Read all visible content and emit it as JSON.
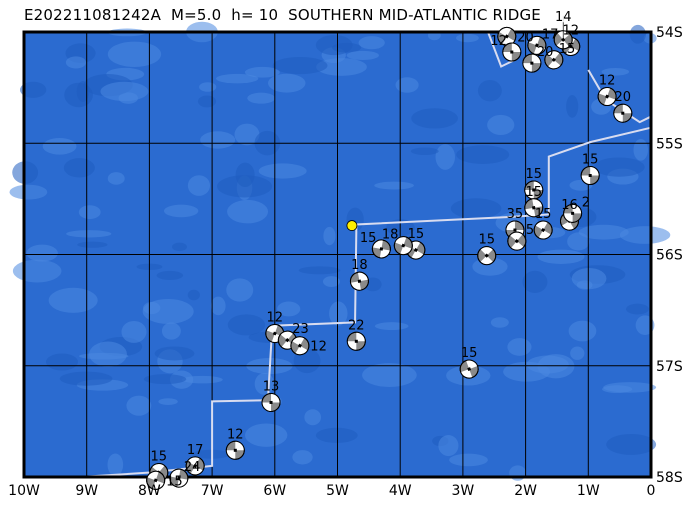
{
  "title": "E202211081242A  M=5.0  h= 10  SOUTHERN MID-ATLANTIC RIDGE",
  "colors": {
    "ocean": "#2b6bd0",
    "ocean_light": "#4a88e0",
    "grid": "#000000",
    "boundary": "#d8dcf0",
    "epicenter": "#ffee00",
    "mech_dark": "#8a8a8a"
  },
  "axes": {
    "lon_range": [
      -10,
      0
    ],
    "lat_range": [
      -58,
      -54
    ],
    "x_ticks": [
      {
        "v": -10,
        "label": "10W"
      },
      {
        "v": -9,
        "label": "9W"
      },
      {
        "v": -8,
        "label": "8W"
      },
      {
        "v": -7,
        "label": "7W"
      },
      {
        "v": -6,
        "label": "6W"
      },
      {
        "v": -5,
        "label": "5W"
      },
      {
        "v": -4,
        "label": "4W"
      },
      {
        "v": -3,
        "label": "3W"
      },
      {
        "v": -2,
        "label": "2W"
      },
      {
        "v": -1,
        "label": "1W"
      },
      {
        "v": 0,
        "label": "0"
      }
    ],
    "y_ticks": [
      {
        "v": -54,
        "label": "54S"
      },
      {
        "v": -55,
        "label": "55S"
      },
      {
        "v": -56,
        "label": "56S"
      },
      {
        "v": -57,
        "label": "57S"
      },
      {
        "v": -58,
        "label": "58S"
      }
    ]
  },
  "epicenter": {
    "lon": -4.77,
    "lat": -55.74
  },
  "plate_boundary": [
    [
      [
        -2.6,
        -54.0
      ],
      [
        -2.39,
        -54.31
      ],
      [
        -2.17,
        -54.25
      ]
    ],
    [
      [
        -1.0,
        -54.34
      ],
      [
        -0.72,
        -54.61
      ],
      [
        -0.18,
        -54.81
      ],
      [
        0,
        -54.76
      ]
    ],
    [
      [
        0,
        -54.86
      ],
      [
        -0.97,
        -54.99
      ],
      [
        -1.63,
        -55.12
      ],
      [
        -1.63,
        -55.64
      ],
      [
        -2.17,
        -55.66
      ],
      [
        -4.7,
        -55.73
      ],
      [
        -4.7,
        -55.8
      ],
      [
        -4.72,
        -56.61
      ],
      [
        -6.04,
        -56.64
      ],
      [
        -6.11,
        -57.31
      ],
      [
        -7.0,
        -57.32
      ],
      [
        -7.0,
        -57.9
      ],
      [
        -7.99,
        -57.96
      ],
      [
        -9.11,
        -58.0
      ]
    ]
  ],
  "events": [
    {
      "lon": -0.45,
      "lat": -54.73,
      "depth": "20",
      "rot": 90
    },
    {
      "lon": -0.7,
      "lat": -54.58,
      "depth": "12",
      "rot": 20
    },
    {
      "lon": -0.97,
      "lat": -55.29,
      "depth": "15",
      "rot": 90
    },
    {
      "lon": -1.87,
      "lat": -55.42,
      "depth": "15",
      "rot": 90
    },
    {
      "lon": -1.87,
      "lat": -55.58,
      "depth": "15",
      "rot": 80
    },
    {
      "lon": -1.72,
      "lat": -55.78,
      "depth": "15",
      "rot": 30
    },
    {
      "lon": -2.17,
      "lat": -55.78,
      "depth": "35",
      "rot": 0
    },
    {
      "lon": -2.14,
      "lat": -55.88,
      "depth": "5",
      "rot": 40
    },
    {
      "lon": -2.62,
      "lat": -56.01,
      "depth": "15",
      "rot": 45
    },
    {
      "lon": -1.3,
      "lat": -55.7,
      "depth": "16",
      "rot": 60
    },
    {
      "lon": -1.25,
      "lat": -55.63,
      "depth": "2",
      "rot": 90
    },
    {
      "lon": -3.75,
      "lat": -55.96,
      "depth": "15",
      "rot": 30
    },
    {
      "lon": -3.95,
      "lat": -55.92,
      "depth": "18",
      "rot": 20
    },
    {
      "lon": -4.3,
      "lat": -55.95,
      "depth": "15",
      "rot": 10
    },
    {
      "lon": -4.65,
      "lat": -56.24,
      "depth": "18",
      "rot": 80
    },
    {
      "lon": -4.7,
      "lat": -56.78,
      "depth": "22",
      "rot": 90
    },
    {
      "lon": -2.9,
      "lat": -57.03,
      "depth": "15",
      "rot": 70
    },
    {
      "lon": -6.0,
      "lat": -56.71,
      "depth": "12",
      "rot": 20
    },
    {
      "lon": -5.8,
      "lat": -56.77,
      "depth": "23",
      "rot": 40
    },
    {
      "lon": -5.6,
      "lat": -56.82,
      "depth": "12",
      "rot": 30
    },
    {
      "lon": -6.06,
      "lat": -57.33,
      "depth": "13",
      "rot": 90
    },
    {
      "lon": -6.63,
      "lat": -57.76,
      "depth": "12",
      "rot": 90
    },
    {
      "lon": -7.27,
      "lat": -57.9,
      "depth": "17",
      "rot": 30
    },
    {
      "lon": -7.53,
      "lat": -58.01,
      "depth": "24",
      "rot": 10
    },
    {
      "lon": -7.85,
      "lat": -57.96,
      "depth": "15",
      "rot": 40
    },
    {
      "lon": -7.9,
      "lat": -58.03,
      "depth": "15",
      "rot": 20
    },
    {
      "lon": -2.3,
      "lat": -54.04,
      "depth": "20",
      "rot": 30
    },
    {
      "lon": -2.22,
      "lat": -54.18,
      "depth": "12",
      "rot": 90
    },
    {
      "lon": -1.9,
      "lat": -54.28,
      "depth": "20",
      "rot": 90
    },
    {
      "lon": -1.82,
      "lat": -54.12,
      "depth": "17",
      "rot": 20
    },
    {
      "lon": -1.55,
      "lat": -54.25,
      "depth": "15",
      "rot": 40
    },
    {
      "lon": -1.28,
      "lat": -54.13,
      "depth": "12",
      "rot": 30
    },
    {
      "lon": -1.4,
      "lat": -54.07,
      "depth": "14",
      "rot": 50
    }
  ]
}
